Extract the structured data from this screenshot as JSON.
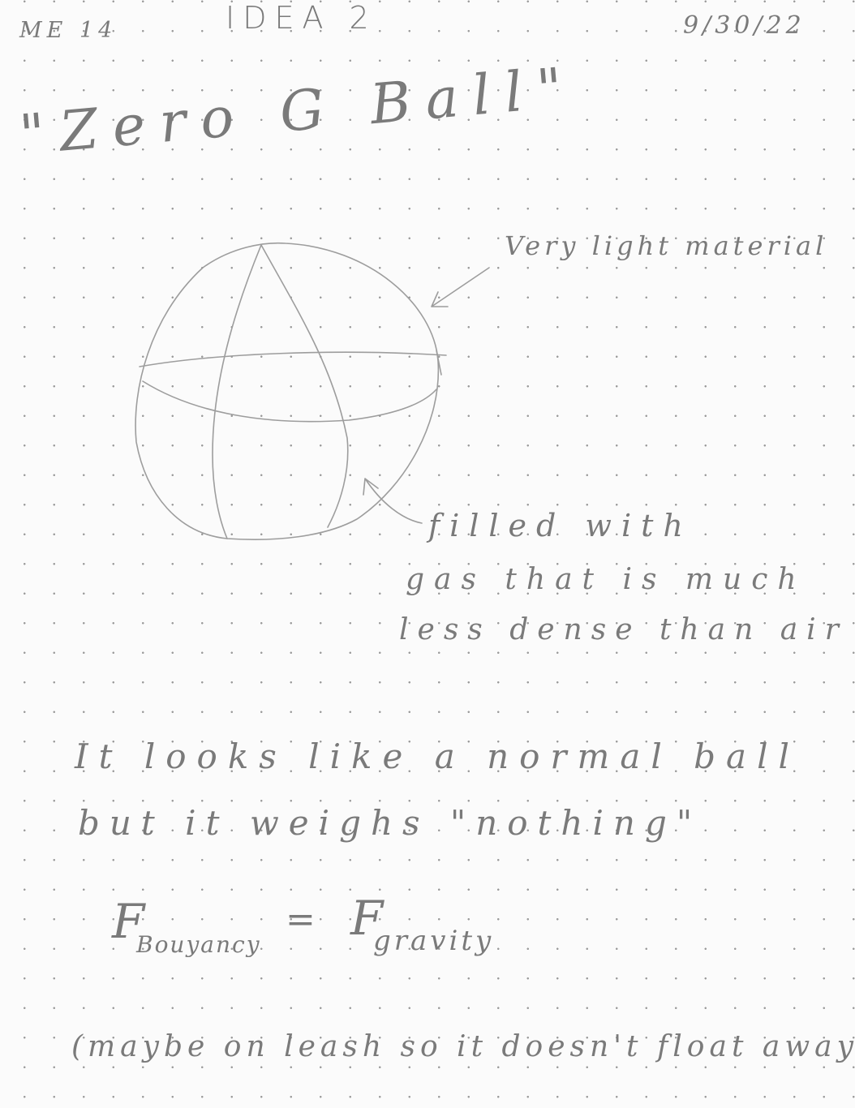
{
  "header": {
    "course": "ME 14",
    "idea": "IDEA 2",
    "date": "9/30/22"
  },
  "title": "\"Zero G Ball\"",
  "annotations": {
    "material": "Very light material",
    "gas_line1": "filled with",
    "gas_line2": "gas that is much",
    "gas_line3": "less dense than air"
  },
  "description": {
    "line1": "It looks like a normal ball",
    "line2": "but it weighs \"nothing\""
  },
  "equation": {
    "lhs_symbol": "F",
    "lhs_subscript": "Bouyancy",
    "operator": "=",
    "rhs_symbol": "F",
    "rhs_subscript": "gravity"
  },
  "note": "(maybe on leash so it doesn't float away)"
}
